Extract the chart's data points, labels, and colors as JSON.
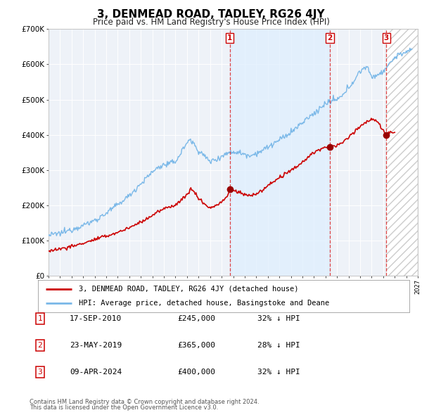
{
  "title": "3, DENMEAD ROAD, TADLEY, RG26 4JY",
  "subtitle": "Price paid vs. HM Land Registry's House Price Index (HPI)",
  "legend_line1": "3, DENMEAD ROAD, TADLEY, RG26 4JY (detached house)",
  "legend_line2": "HPI: Average price, detached house, Basingstoke and Deane",
  "footer1": "Contains HM Land Registry data © Crown copyright and database right 2024.",
  "footer2": "This data is licensed under the Open Government Licence v3.0.",
  "transactions": [
    {
      "num": 1,
      "date": "17-SEP-2010",
      "price": "£245,000",
      "pct": "32% ↓ HPI",
      "year": 2010.71,
      "value": 245000
    },
    {
      "num": 2,
      "date": "23-MAY-2019",
      "price": "£365,000",
      "pct": "28% ↓ HPI",
      "year": 2019.39,
      "value": 365000
    },
    {
      "num": 3,
      "date": "09-APR-2024",
      "price": "£400,000",
      "pct": "32% ↓ HPI",
      "year": 2024.27,
      "value": 400000
    }
  ],
  "hpi_color": "#7ab8e8",
  "price_color": "#cc0000",
  "dot_color": "#990000",
  "vline_color": "#dd3333",
  "plot_bg": "#eef2f8",
  "grid_color": "#ffffff",
  "shade_color": "#ddeeff",
  "hatch_color": "#cccccc",
  "ylim": [
    0,
    700000
  ],
  "xlim_start": 1995,
  "xlim_end": 2027,
  "figwidth": 6.0,
  "figheight": 5.9,
  "dpi": 100
}
